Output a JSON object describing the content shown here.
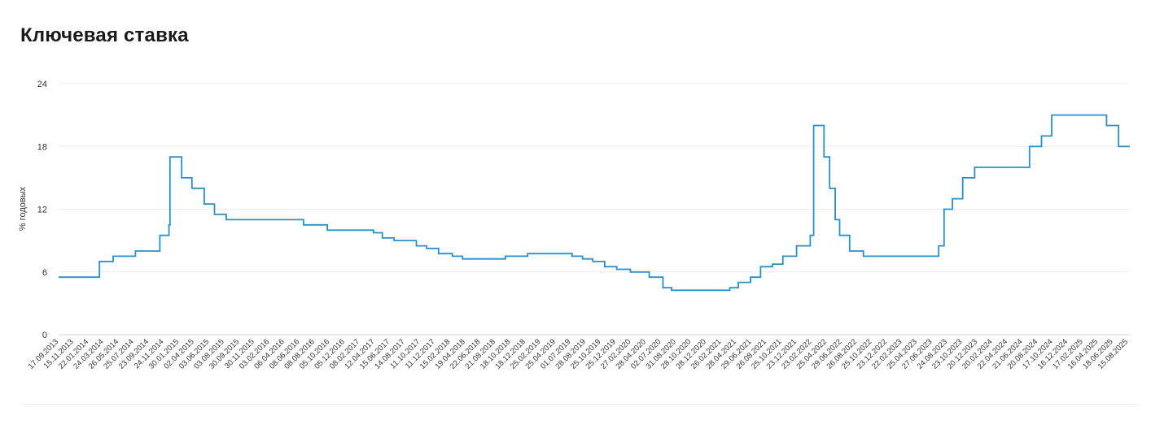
{
  "page": {
    "title": "Ключевая ставка"
  },
  "chart_data": {
    "type": "line",
    "step": true,
    "title": "Ключевая ставка",
    "xlabel": "",
    "ylabel": "% годовых",
    "ylim": [
      0,
      24
    ],
    "yticks": [
      0,
      6,
      12,
      18,
      24
    ],
    "grid": true,
    "x_tick_labels": [
      "17.09.2013",
      "15.11.2013",
      "22.01.2014",
      "24.03.2014",
      "26.05.2014",
      "25.07.2014",
      "23.09.2014",
      "24.11.2014",
      "30.01.2015",
      "02.04.2015",
      "03.06.2015",
      "03.08.2015",
      "30.09.2015",
      "30.11.2015",
      "03.02.2016",
      "06.04.2016",
      "08.06.2016",
      "08.08.2016",
      "05.10.2016",
      "05.12.2016",
      "08.02.2017",
      "12.04.2017",
      "15.06.2017",
      "14.08.2017",
      "11.10.2017",
      "11.12.2017",
      "15.02.2018",
      "19.04.2018",
      "22.06.2018",
      "21.08.2018",
      "18.10.2018",
      "18.12.2018",
      "25.02.2019",
      "25.04.2019",
      "01.07.2019",
      "28.08.2019",
      "25.10.2019",
      "25.12.2019",
      "27.02.2020",
      "28.04.2020",
      "02.07.2020",
      "31.08.2020",
      "28.10.2020",
      "28.12.2020",
      "26.02.2021",
      "28.04.2021",
      "29.06.2021",
      "26.08.2021",
      "25.10.2021",
      "23.12.2021",
      "23.02.2022",
      "25.04.2022",
      "29.06.2022",
      "26.08.2022",
      "25.10.2022",
      "23.12.2022",
      "22.02.2023",
      "25.04.2023",
      "27.06.2023",
      "24.08.2023",
      "23.10.2023",
      "20.12.2023",
      "20.02.2024",
      "22.04.2024",
      "21.06.2024",
      "20.08.2024",
      "17.10.2024",
      "16.12.2024",
      "17.02.2025",
      "16.04.2025",
      "18.06.2025",
      "15.08.2025"
    ],
    "series": [
      {
        "color": "#2b8fc9",
        "points": [
          [
            "2013-09-17",
            5.5
          ],
          [
            "2014-03-03",
            7.0
          ],
          [
            "2014-04-28",
            7.5
          ],
          [
            "2014-07-28",
            8.0
          ],
          [
            "2014-11-05",
            9.5
          ],
          [
            "2014-12-12",
            10.5
          ],
          [
            "2014-12-16",
            17.0
          ],
          [
            "2015-02-02",
            15.0
          ],
          [
            "2015-03-16",
            14.0
          ],
          [
            "2015-05-05",
            12.5
          ],
          [
            "2015-06-16",
            11.5
          ],
          [
            "2015-08-03",
            11.0
          ],
          [
            "2016-06-14",
            10.5
          ],
          [
            "2016-09-19",
            10.0
          ],
          [
            "2017-03-27",
            9.75
          ],
          [
            "2017-05-02",
            9.25
          ],
          [
            "2017-06-19",
            9.0
          ],
          [
            "2017-09-18",
            8.5
          ],
          [
            "2017-10-30",
            8.25
          ],
          [
            "2017-12-18",
            7.75
          ],
          [
            "2018-02-12",
            7.5
          ],
          [
            "2018-03-26",
            7.25
          ],
          [
            "2018-09-17",
            7.5
          ],
          [
            "2018-12-17",
            7.75
          ],
          [
            "2019-06-17",
            7.5
          ],
          [
            "2019-07-29",
            7.25
          ],
          [
            "2019-09-09",
            7.0
          ],
          [
            "2019-10-28",
            6.5
          ],
          [
            "2019-12-16",
            6.25
          ],
          [
            "2020-02-10",
            6.0
          ],
          [
            "2020-04-27",
            5.5
          ],
          [
            "2020-06-22",
            4.5
          ],
          [
            "2020-07-27",
            4.25
          ],
          [
            "2021-03-22",
            4.5
          ],
          [
            "2021-04-26",
            5.0
          ],
          [
            "2021-06-15",
            5.5
          ],
          [
            "2021-07-26",
            6.5
          ],
          [
            "2021-09-13",
            6.75
          ],
          [
            "2021-10-25",
            7.5
          ],
          [
            "2021-12-20",
            8.5
          ],
          [
            "2022-02-14",
            9.5
          ],
          [
            "2022-02-28",
            20.0
          ],
          [
            "2022-04-11",
            17.0
          ],
          [
            "2022-05-04",
            14.0
          ],
          [
            "2022-05-27",
            11.0
          ],
          [
            "2022-06-14",
            9.5
          ],
          [
            "2022-07-25",
            8.0
          ],
          [
            "2022-09-19",
            7.5
          ],
          [
            "2023-07-24",
            8.5
          ],
          [
            "2023-08-15",
            12.0
          ],
          [
            "2023-09-18",
            13.0
          ],
          [
            "2023-10-30",
            15.0
          ],
          [
            "2023-12-18",
            16.0
          ],
          [
            "2024-07-29",
            18.0
          ],
          [
            "2024-09-16",
            19.0
          ],
          [
            "2024-10-28",
            21.0
          ],
          [
            "2025-06-09",
            20.0
          ],
          [
            "2025-07-28",
            18.0
          ],
          [
            "2025-09-12",
            18.0
          ]
        ]
      }
    ]
  }
}
